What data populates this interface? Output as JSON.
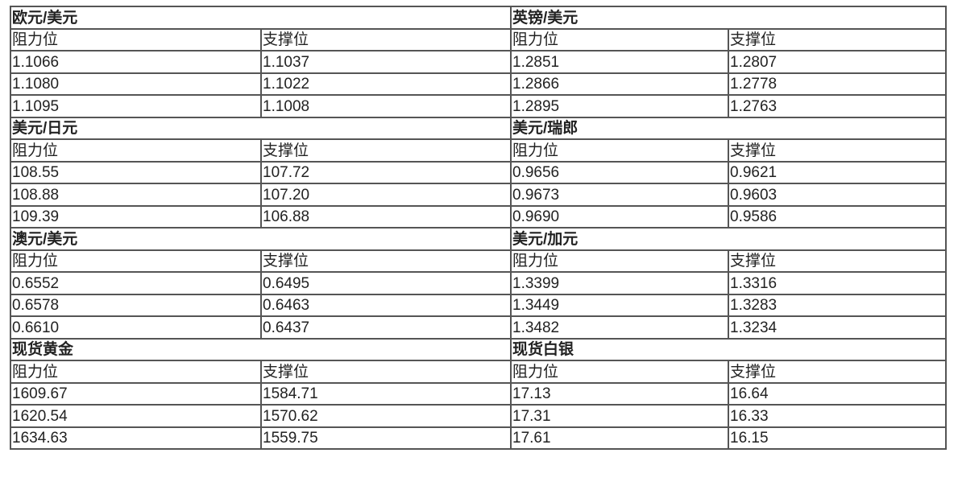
{
  "headers": {
    "resistance": "阻力位",
    "support": "支撑位"
  },
  "groups": [
    {
      "left": {
        "title": "欧元/美元",
        "rows": [
          [
            "1.1066",
            "1.1037"
          ],
          [
            "1.1080",
            "1.1022"
          ],
          [
            "1.1095",
            "1.1008"
          ]
        ]
      },
      "right": {
        "title": "英镑/美元",
        "rows": [
          [
            "1.2851",
            "1.2807"
          ],
          [
            "1.2866",
            "1.2778"
          ],
          [
            "1.2895",
            "1.2763"
          ]
        ]
      }
    },
    {
      "left": {
        "title": "美元/日元",
        "rows": [
          [
            "108.55",
            "107.72"
          ],
          [
            "108.88",
            "107.20"
          ],
          [
            "109.39",
            "106.88"
          ]
        ]
      },
      "right": {
        "title": "美元/瑞郎",
        "rows": [
          [
            "0.9656",
            "0.9621"
          ],
          [
            "0.9673",
            "0.9603"
          ],
          [
            "0.9690",
            "0.9586"
          ]
        ]
      }
    },
    {
      "left": {
        "title": "澳元/美元",
        "rows": [
          [
            "0.6552",
            "0.6495"
          ],
          [
            "0.6578",
            "0.6463"
          ],
          [
            "0.6610",
            "0.6437"
          ]
        ]
      },
      "right": {
        "title": "美元/加元",
        "rows": [
          [
            "1.3399",
            "1.3316"
          ],
          [
            "1.3449",
            "1.3283"
          ],
          [
            "1.3482",
            "1.3234"
          ]
        ]
      }
    },
    {
      "left": {
        "title": "现货黄金",
        "rows": [
          [
            "1609.67",
            "1584.71"
          ],
          [
            "1620.54",
            "1570.62"
          ],
          [
            "1634.63",
            "1559.75"
          ]
        ]
      },
      "right": {
        "title": "现货白银",
        "rows": [
          [
            "17.13",
            "16.64"
          ],
          [
            "17.31",
            "16.33"
          ],
          [
            "17.61",
            "16.15"
          ]
        ]
      }
    }
  ]
}
